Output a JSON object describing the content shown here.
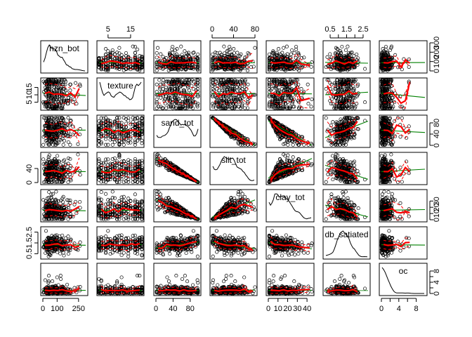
{
  "chart_data": {
    "type": "scatter",
    "subtype": "scatterplot-matrix",
    "title": "",
    "colors": {
      "points": "#000000",
      "linear_fit": "#008000",
      "smooth": "#ff0000",
      "spread": "#ff0000",
      "density": "#000000"
    },
    "variables": [
      {
        "name": "hzn_bot",
        "range": [
          0,
          300
        ],
        "ticks": [
          0,
          100,
          250
        ],
        "tick_labels": [
          "0",
          "100",
          "250"
        ],
        "tick_side": "bottom"
      },
      {
        "name": "texture",
        "range": [
          1,
          20
        ],
        "ticks": [
          5,
          15
        ],
        "tick_labels": [
          "5",
          "15"
        ],
        "tick_side": "top",
        "left_ticks": [
          5,
          10,
          15
        ],
        "left_tick_labels": [
          "5",
          "10",
          "15"
        ]
      },
      {
        "name": "sand_tot",
        "range": [
          0,
          100
        ],
        "ticks": [
          0,
          40,
          80
        ],
        "tick_labels": [
          "0",
          "40",
          "80"
        ],
        "tick_side": "bottom",
        "right_ticks": [
          0,
          40,
          80
        ],
        "right_tick_labels": [
          "0",
          "40",
          "80"
        ]
      },
      {
        "name": "silt_tot",
        "range": [
          0,
          80
        ],
        "ticks": [
          0,
          40,
          80
        ],
        "tick_labels": [
          "0",
          "40",
          "80"
        ],
        "tick_side": "top",
        "left_ticks": [
          0,
          40
        ],
        "left_tick_labels": [
          "0",
          "40"
        ]
      },
      {
        "name": "clay_tot",
        "range": [
          0,
          45
        ],
        "ticks": [
          0,
          10,
          20,
          30,
          40
        ],
        "tick_labels": [
          "0",
          "10",
          "20",
          "30",
          "40"
        ],
        "tick_side": "bottom",
        "right_ticks": [
          0,
          10,
          20,
          30
        ],
        "right_tick_labels": [
          "0",
          "10",
          "20",
          "30"
        ]
      },
      {
        "name": "db_satiated",
        "range": [
          0.2,
          2.8
        ],
        "ticks": [
          0.5,
          1.0,
          1.5,
          2.0,
          2.5
        ],
        "tick_labels": [
          "0.5",
          "1.5",
          "2.5"
        ],
        "tick_side": "top",
        "left_ticks": [
          0.5,
          1.5,
          2.5
        ],
        "left_tick_labels": [
          "0.5",
          "1.5",
          "2.5"
        ]
      },
      {
        "name": "oc",
        "range": [
          0,
          10
        ],
        "ticks": [
          0,
          2,
          4,
          6,
          8
        ],
        "tick_labels": [
          "0",
          "4",
          "8"
        ],
        "tick_side": "bottom",
        "right_ticks": [
          0,
          2,
          4,
          6,
          8
        ],
        "right_tick_labels": [
          "0",
          "4",
          "8"
        ]
      }
    ],
    "top_labels": [
      "5",
      "15",
      "0",
      "40",
      "80",
      "0.5",
      "1.5",
      "2.5"
    ],
    "right_top_labels": [
      "0",
      "100",
      "200",
      "300"
    ],
    "bottom_labels": [
      "0",
      "100",
      "250",
      "0",
      "40",
      "80",
      "0",
      "10",
      "20",
      "30",
      "40",
      "0",
      "4",
      "8"
    ],
    "left_labels": [
      "5",
      "15",
      "0.5",
      "1.5",
      "2.5",
      "0",
      "40"
    ],
    "grid": false,
    "legend": "none"
  }
}
